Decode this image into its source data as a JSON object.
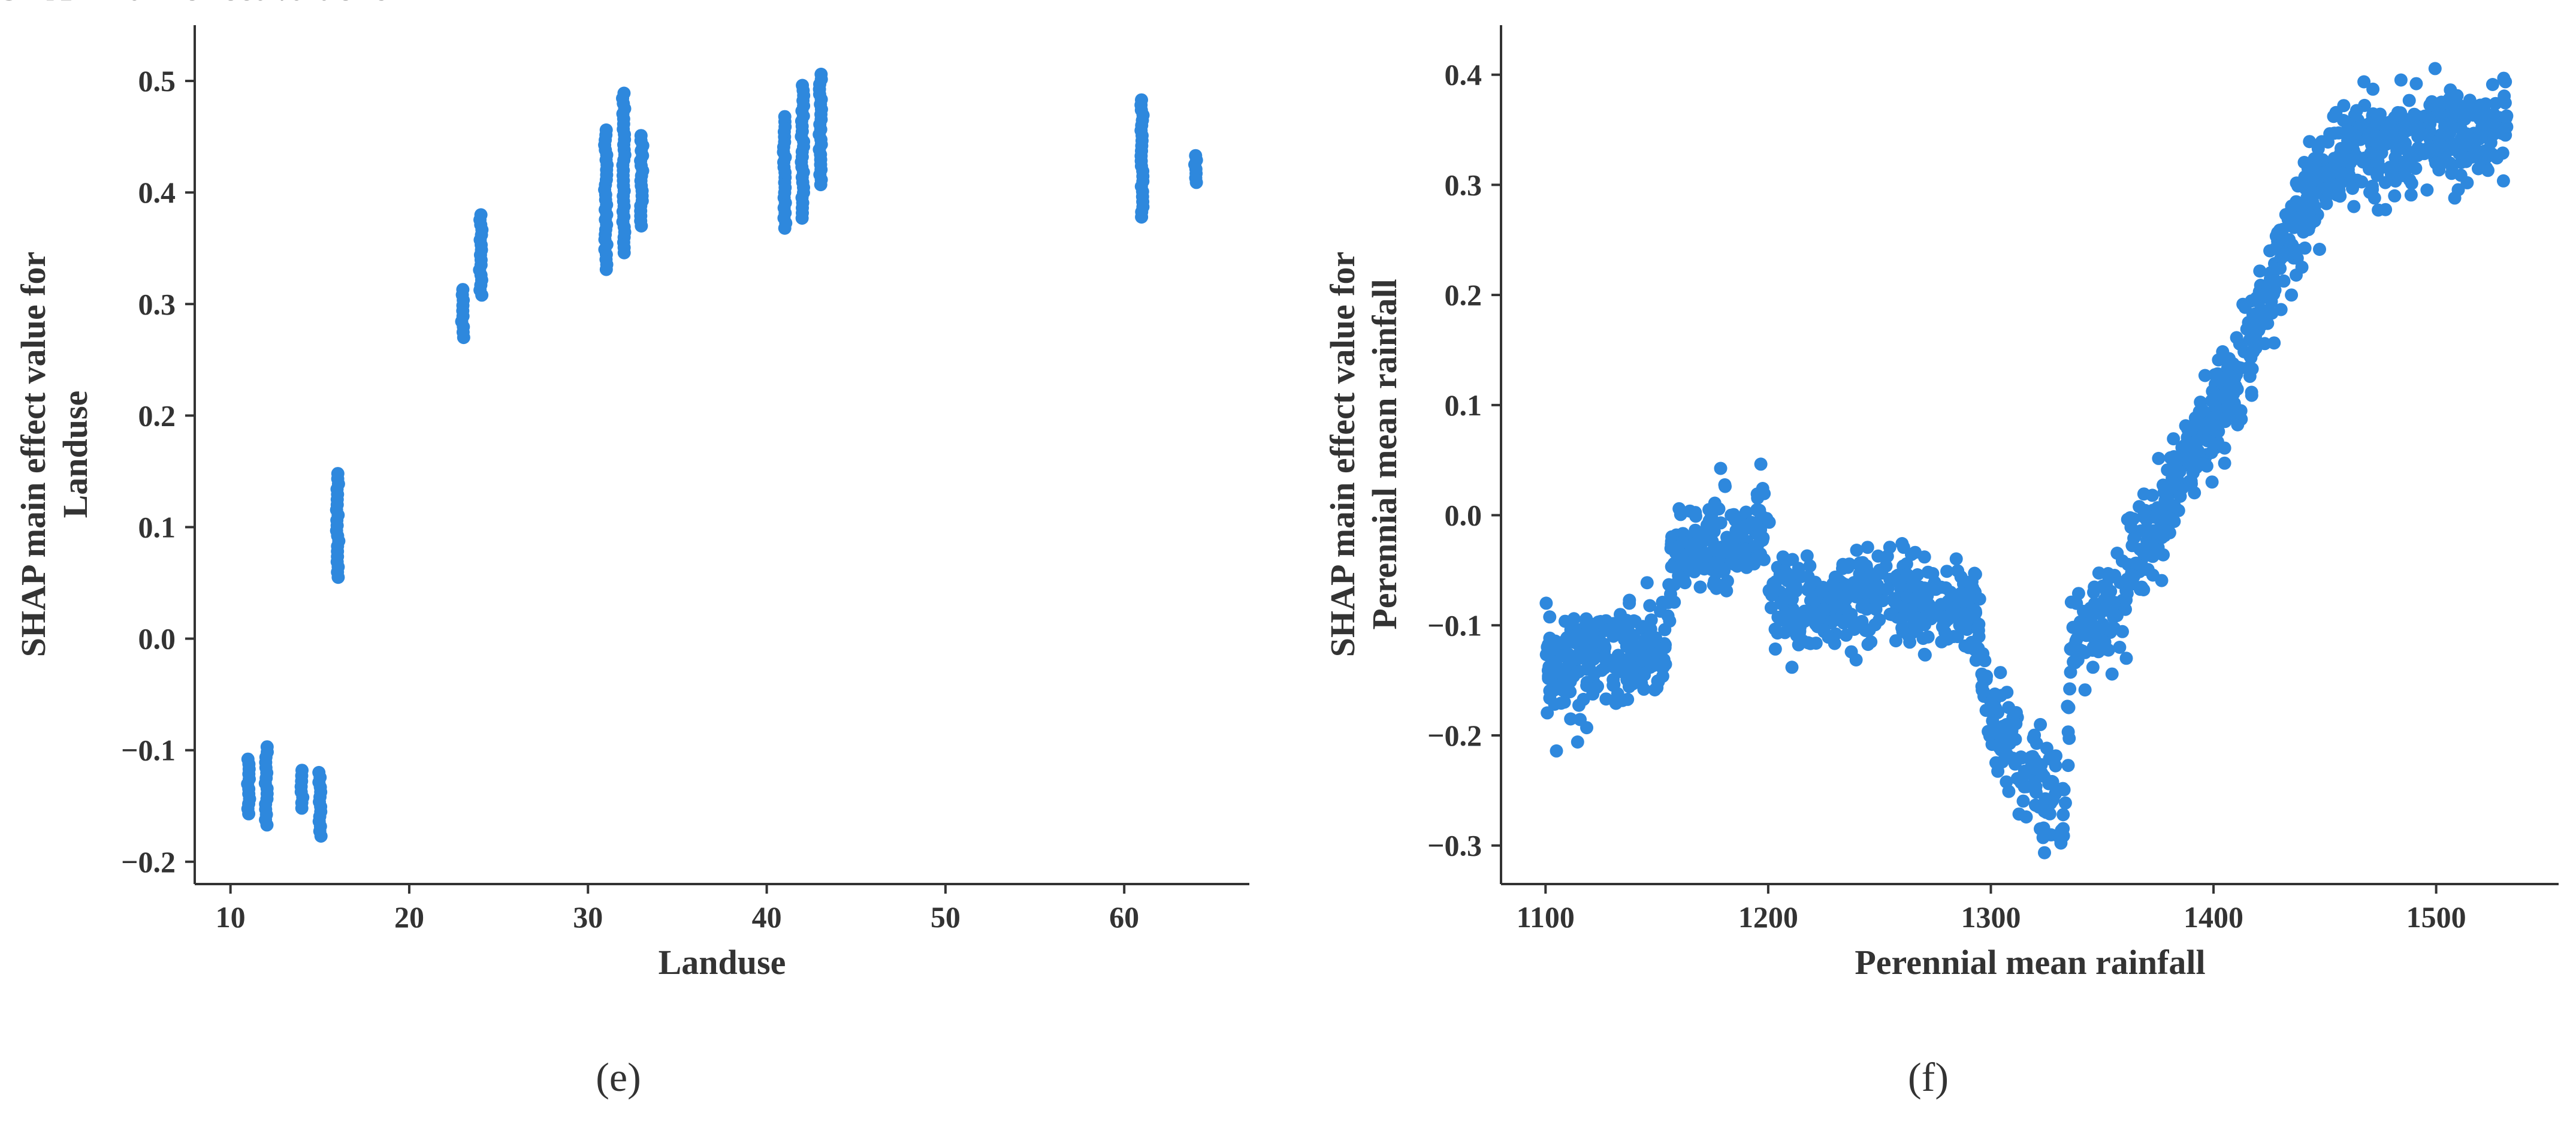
{
  "colors": {
    "points": "#2E88DD",
    "axes": "#333333"
  },
  "chart_data": [
    {
      "type": "scatter",
      "panel_label": "(e)",
      "xlabel": "Landuse",
      "ylabel": [
        "SHAP main effect value for",
        "Landuse"
      ],
      "xlim": [
        8,
        67
      ],
      "ylim": [
        -0.22,
        0.55
      ],
      "xticks": [
        10,
        20,
        30,
        40,
        50,
        60
      ],
      "yticks": [
        -0.2,
        -0.1,
        0.0,
        0.1,
        0.2,
        0.3,
        0.4,
        0.5
      ],
      "xtick_labels": [
        "10",
        "20",
        "30",
        "40",
        "50",
        "60"
      ],
      "ytick_labels": [
        "−0.2",
        "−0.1",
        "0.0",
        "0.1",
        "0.2",
        "0.3",
        "0.4",
        "0.5"
      ],
      "grid": false,
      "columns": [
        {
          "x": 11,
          "ymin": -0.157,
          "ymax": -0.108
        },
        {
          "x": 12,
          "ymin": -0.167,
          "ymax": -0.097
        },
        {
          "x": 14,
          "ymin": -0.152,
          "ymax": -0.118
        },
        {
          "x": 15,
          "ymin": -0.177,
          "ymax": -0.12
        },
        {
          "x": 16,
          "ymin": 0.055,
          "ymax": 0.148
        },
        {
          "x": 23,
          "ymin": 0.27,
          "ymax": 0.313
        },
        {
          "x": 24,
          "ymin": 0.308,
          "ymax": 0.38
        },
        {
          "x": 31,
          "ymin": 0.331,
          "ymax": 0.456
        },
        {
          "x": 32,
          "ymin": 0.346,
          "ymax": 0.489
        },
        {
          "x": 33,
          "ymin": 0.37,
          "ymax": 0.451
        },
        {
          "x": 41,
          "ymin": 0.368,
          "ymax": 0.468
        },
        {
          "x": 42,
          "ymin": 0.377,
          "ymax": 0.496
        },
        {
          "x": 43,
          "ymin": 0.407,
          "ymax": 0.506
        },
        {
          "x": 61,
          "ymin": 0.378,
          "ymax": 0.483
        },
        {
          "x": 64,
          "ymin": 0.409,
          "ymax": 0.433
        }
      ]
    },
    {
      "type": "scatter",
      "panel_label": "(f)",
      "xlabel": "Perennial mean rainfall",
      "ylabel": [
        "SHAP main effect value for",
        "Perennial mean rainfall"
      ],
      "xlim": [
        1080,
        1555
      ],
      "ylim": [
        -0.335,
        0.445
      ],
      "xticks": [
        1100,
        1200,
        1300,
        1400,
        1500
      ],
      "yticks": [
        -0.3,
        -0.2,
        -0.1,
        0.0,
        0.1,
        0.2,
        0.3,
        0.4
      ],
      "xtick_labels": [
        "1100",
        "1200",
        "1300",
        "1400",
        "1500"
      ],
      "ytick_labels": [
        "−0.3",
        "−0.2",
        "−0.1",
        "0.0",
        "0.1",
        "0.2",
        "0.3",
        "0.4"
      ],
      "grid": false,
      "trend": [
        {
          "x": 1100,
          "y": -0.14
        },
        {
          "x": 1120,
          "y": -0.13
        },
        {
          "x": 1140,
          "y": -0.128
        },
        {
          "x": 1153,
          "y": -0.13
        },
        {
          "x": 1157,
          "y": -0.035
        },
        {
          "x": 1175,
          "y": -0.03
        },
        {
          "x": 1199,
          "y": -0.01
        },
        {
          "x": 1202,
          "y": -0.08
        },
        {
          "x": 1225,
          "y": -0.09
        },
        {
          "x": 1250,
          "y": -0.07
        },
        {
          "x": 1275,
          "y": -0.09
        },
        {
          "x": 1294,
          "y": -0.085
        },
        {
          "x": 1297,
          "y": -0.17
        },
        {
          "x": 1315,
          "y": -0.225
        },
        {
          "x": 1333,
          "y": -0.275
        },
        {
          "x": 1336,
          "y": -0.12
        },
        {
          "x": 1360,
          "y": -0.07
        },
        {
          "x": 1380,
          "y": 0.02
        },
        {
          "x": 1400,
          "y": 0.09
        },
        {
          "x": 1420,
          "y": 0.17
        },
        {
          "x": 1440,
          "y": 0.28
        },
        {
          "x": 1460,
          "y": 0.33
        },
        {
          "x": 1490,
          "y": 0.34
        },
        {
          "x": 1532,
          "y": 0.35
        }
      ],
      "spread": 0.022
    }
  ]
}
